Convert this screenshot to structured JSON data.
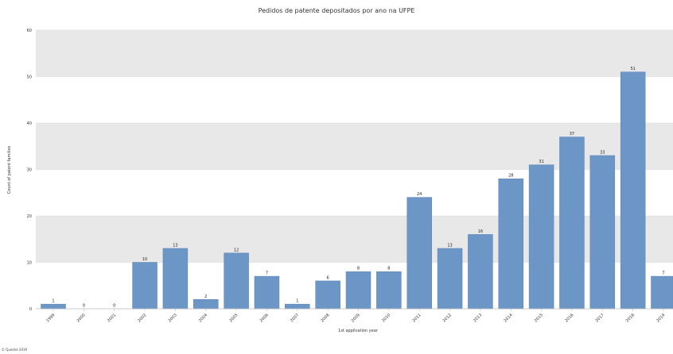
{
  "chart_data": {
    "type": "bar",
    "title": "Pedidos de patente depositados por ano na UFPE",
    "xlabel": "1st application year",
    "ylabel": "Count of patent families",
    "ylim": [
      0,
      60
    ],
    "yticks": [
      0,
      10,
      20,
      30,
      40,
      50,
      60
    ],
    "grid": "alternating horizontal bands",
    "legend": "none",
    "bar_color": "#6b96c6",
    "categories": [
      "1999",
      "2000",
      "2001",
      "2002",
      "2003",
      "2004",
      "2005",
      "2006",
      "2007",
      "2008",
      "2009",
      "2010",
      "2011",
      "2012",
      "2013",
      "2014",
      "2015",
      "2016",
      "2017",
      "2018",
      "2019"
    ],
    "values": [
      1,
      0,
      0,
      10,
      13,
      2,
      12,
      7,
      1,
      6,
      8,
      8,
      24,
      13,
      16,
      28,
      31,
      37,
      33,
      51,
      7
    ]
  },
  "footer": "© Questel 2019"
}
